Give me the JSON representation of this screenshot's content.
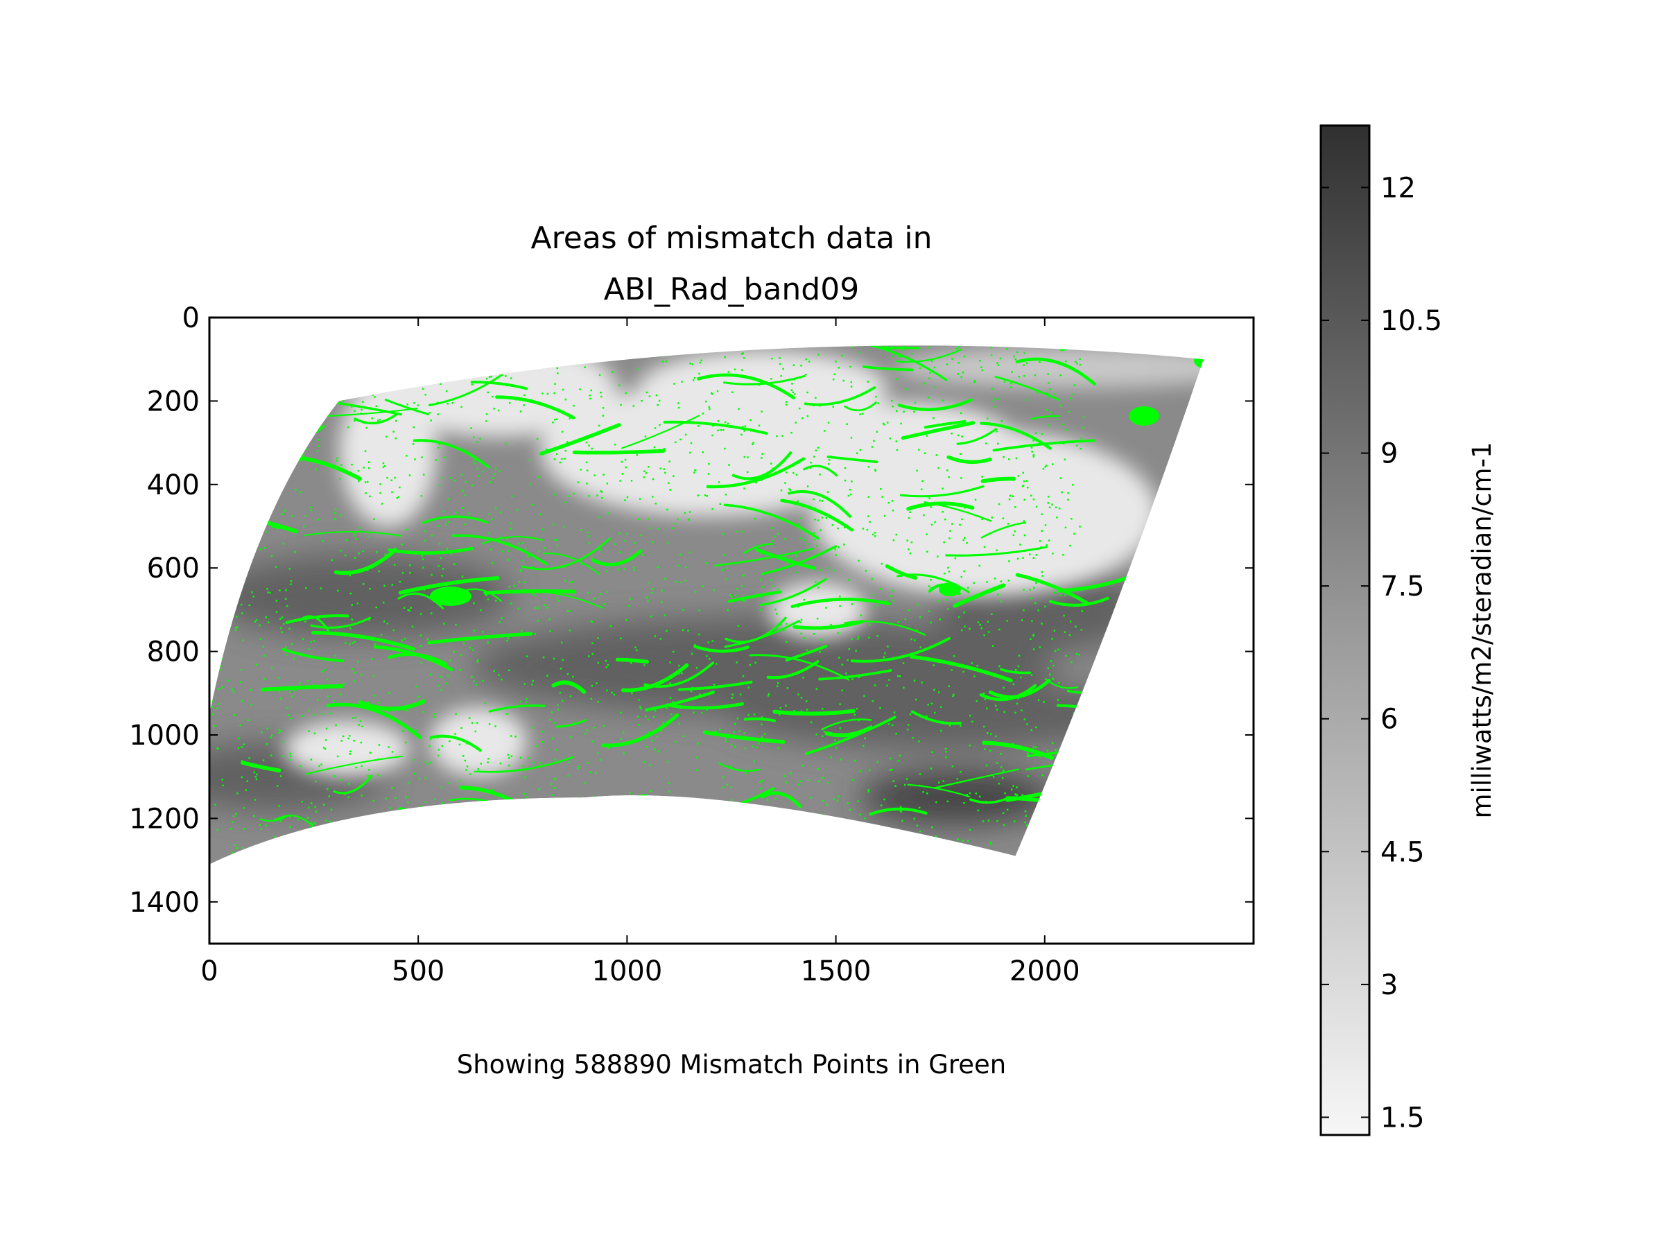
{
  "chart_data": {
    "type": "heatmap",
    "title_lines": [
      "Areas of mismatch data in",
      "ABI_Rad_band09"
    ],
    "xlabel": "",
    "ylabel": "",
    "footnote": "Showing 588890 Mismatch Points in Green",
    "xlim": [
      0,
      2500
    ],
    "ylim": [
      1500,
      0
    ],
    "y_inverted": true,
    "x_ticks": [
      0,
      500,
      1000,
      1500,
      2000
    ],
    "x_tick_labels": [
      "0",
      "500",
      "1000",
      "1500",
      "2000"
    ],
    "y_ticks": [
      0,
      200,
      400,
      600,
      800,
      1000,
      1200,
      1400
    ],
    "y_tick_labels": [
      "0",
      "200",
      "400",
      "600",
      "800",
      "1000",
      "1200",
      "1400"
    ],
    "grid": false,
    "mismatch_count": 588890,
    "mismatch_color": "#00ff00",
    "image_extent_corners": {
      "top_left": [
        310,
        200
      ],
      "top_right": [
        2380,
        100
      ],
      "bottom_right": [
        1930,
        1290
      ],
      "bottom_left": [
        0,
        1310
      ],
      "left_mid": [
        0,
        950
      ],
      "bottom_mid": [
        900,
        1150
      ]
    },
    "colorbar": {
      "label": "milliwatts/m2/steradian/cm-1",
      "cmap": "Greys",
      "min": 1.3,
      "max": 12.7,
      "ticks": [
        1.5,
        3,
        4.5,
        6,
        7.5,
        9,
        10.5,
        12
      ],
      "tick_labels": [
        "1.5",
        "3",
        "4.5",
        "6",
        "7.5",
        "9",
        "10.5",
        "12"
      ],
      "color_low": "#f7f7f7",
      "color_high": "#303030"
    }
  }
}
